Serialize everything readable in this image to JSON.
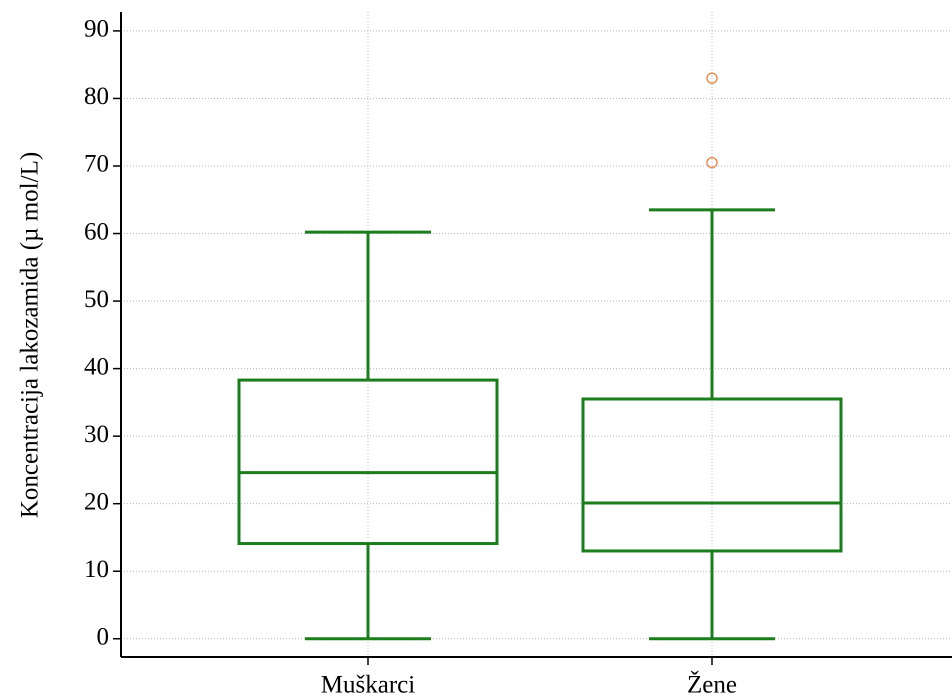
{
  "chart_data": {
    "type": "box",
    "y_label": "Koncentracija lakozamida (µ mol/L)",
    "categories": [
      "Muškarci",
      "Žene"
    ],
    "boxes": [
      {
        "min": 0,
        "q1": 14.1,
        "median": 24.6,
        "q3": 38.3,
        "max": 60.2,
        "outliers": []
      },
      {
        "min": 0,
        "q1": 13.0,
        "median": 20.1,
        "q3": 35.5,
        "max": 63.5,
        "outliers": [
          70.5,
          83.0
        ]
      }
    ],
    "color": "#1b7d1b",
    "outlier_color": "#e8905a",
    "ylim": [
      -2.7,
      92.8
    ],
    "yticks": [
      0,
      10,
      20,
      30,
      40,
      50,
      60,
      70,
      80,
      90
    ],
    "grid": true
  }
}
